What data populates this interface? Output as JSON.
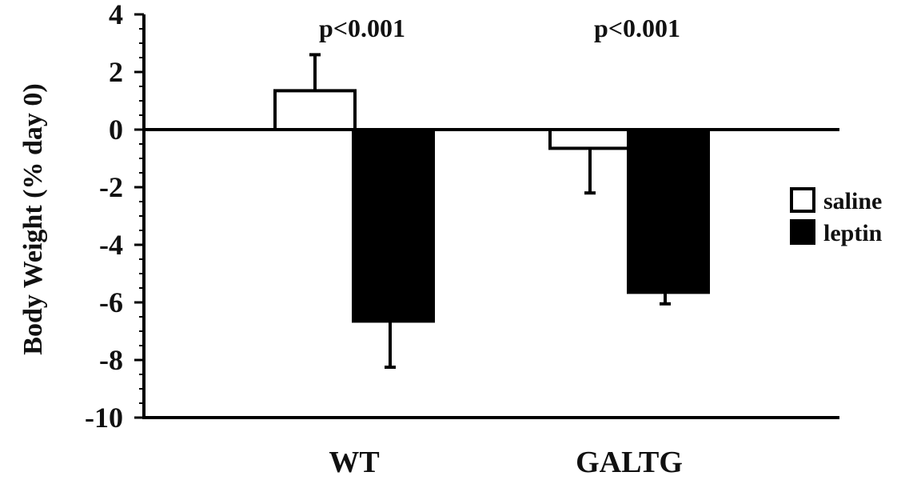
{
  "chart_data": {
    "type": "bar",
    "ylabel": "Body Weight (% day 0)",
    "ylim": [
      -10,
      4
    ],
    "yticks": [
      4,
      2,
      0,
      -2,
      -4,
      -6,
      -8,
      -10
    ],
    "grid": false,
    "legend_position": "right",
    "categories": [
      "WT",
      "GALTG"
    ],
    "series": [
      {
        "name": "saline",
        "fill": "#ffffff",
        "values": [
          1.35,
          -0.65
        ],
        "error": [
          1.25,
          1.55
        ]
      },
      {
        "name": "leptin",
        "fill": "#000000",
        "values": [
          -6.65,
          -5.65
        ],
        "error": [
          1.6,
          0.4
        ]
      }
    ],
    "annotations": [
      "p<0.001",
      "p<0.001"
    ]
  }
}
